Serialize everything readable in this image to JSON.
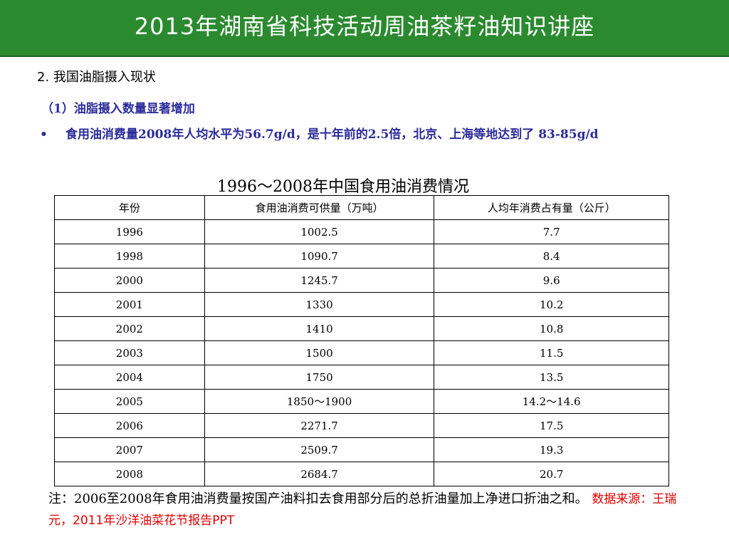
{
  "header": {
    "title": "2013年湖南省科技活动周油茶籽油知识讲座",
    "color": "#2b8a2f"
  },
  "section_title": "2. 我国油脂摄入现状",
  "sub_title": "（1）油脂摄入数量显著增加",
  "bullet": {
    "symbol": "•",
    "text": "食用油消费量2008年人均水平为56.7g/d，是十年前的2.5倍，北京、上海等地达到了 83-85g/d"
  },
  "table": {
    "title": "1996～2008年中国食用油消费情况",
    "headers": [
      "年份",
      "食用油消费可供量（万吨）",
      "人均年消费占有量（公斤）"
    ],
    "rows": [
      [
        "1996",
        "1002.5",
        "7.7"
      ],
      [
        "1998",
        "1090.7",
        "8.4"
      ],
      [
        "2000",
        "1245.7",
        "9.6"
      ],
      [
        "2001",
        "1330",
        "10.2"
      ],
      [
        "2002",
        "1410",
        "10.8"
      ],
      [
        "2003",
        "1500",
        "11.5"
      ],
      [
        "2004",
        "1750",
        "13.5"
      ],
      [
        "2005",
        "1850～1900",
        "14.2～14.6"
      ],
      [
        "2006",
        "2271.7",
        "17.5"
      ],
      [
        "2007",
        "2509.7",
        "19.3"
      ],
      [
        "2008",
        "2684.7",
        "20.7"
      ]
    ]
  },
  "note": {
    "text": "注：2006至2008年食用油消费量按国产油料扣去食用部分后的总折油量加上净进口折油之和。",
    "source": "数据来源：王瑞元，2011年沙洋油菜花节报告PPT",
    "source_color": "#e00000"
  }
}
